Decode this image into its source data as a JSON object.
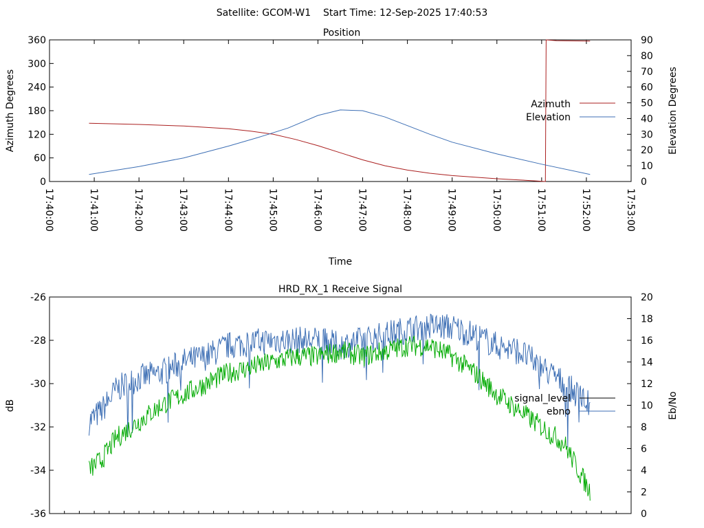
{
  "header": {
    "title": "Satellite: GCOM-W1    Start Time: 12-Sep-2025 17:40:53"
  },
  "chart_data": [
    {
      "type": "line",
      "title": "Position",
      "xlabel": "Time",
      "ylabel": "Azimuth Degrees",
      "y2label": "Elevation Degrees",
      "xlim": [
        "17:40:00",
        "17:53:00"
      ],
      "ylim": [
        0,
        360
      ],
      "y2lim": [
        0,
        90
      ],
      "x_ticks": [
        "17:40:00",
        "17:41:00",
        "17:42:00",
        "17:43:00",
        "17:44:00",
        "17:45:00",
        "17:46:00",
        "17:47:00",
        "17:48:00",
        "17:49:00",
        "17:50:00",
        "17:51:00",
        "17:52:00",
        "17:53:00"
      ],
      "y_ticks": [
        "0",
        "60",
        "120",
        "180",
        "240",
        "300",
        "360"
      ],
      "y2_ticks": [
        "0",
        "10",
        "20",
        "30",
        "40",
        "50",
        "60",
        "70",
        "80",
        "90"
      ],
      "legend_position": "right",
      "series": [
        {
          "name": "Azimuth",
          "axis": "left",
          "color": "#aa1e1e",
          "x": [
            "17:40:53",
            "17:42:00",
            "17:43:00",
            "17:44:00",
            "17:44:30",
            "17:45:00",
            "17:45:30",
            "17:46:00",
            "17:46:30",
            "17:47:00",
            "17:47:30",
            "17:48:00",
            "17:48:30",
            "17:49:00",
            "17:50:00",
            "17:50:30",
            "17:51:05",
            "17:51:06",
            "17:51:20",
            "17:52:05"
          ],
          "y": [
            148,
            145,
            141,
            134,
            128,
            120,
            107,
            91,
            73,
            55,
            40,
            29,
            21,
            15,
            7,
            4,
            0,
            360,
            358,
            357
          ]
        },
        {
          "name": "Elevation",
          "axis": "right",
          "color": "#3c6eb4",
          "x": [
            "17:40:53",
            "17:42:00",
            "17:43:00",
            "17:44:00",
            "17:44:40",
            "17:45:20",
            "17:46:00",
            "17:46:30",
            "17:47:00",
            "17:47:30",
            "17:48:00",
            "17:48:30",
            "17:49:00",
            "17:50:00",
            "17:51:00",
            "17:52:05"
          ],
          "y": [
            4.5,
            9.5,
            15,
            22.5,
            28,
            34,
            42,
            45.5,
            45,
            41,
            35.5,
            30,
            25,
            17.5,
            11,
            4.5
          ]
        }
      ]
    },
    {
      "type": "line",
      "title": "HRD_RX_1 Receive Signal",
      "xlabel": "",
      "ylabel": "dB",
      "y2label": "Eb/No",
      "ylim": [
        -36,
        -26
      ],
      "y2lim": [
        0,
        20
      ],
      "y_ticks": [
        "-26",
        "-28",
        "-30",
        "-32",
        "-34",
        "-36"
      ],
      "y2_ticks": [
        "0",
        "2",
        "4",
        "6",
        "8",
        "10",
        "12",
        "14",
        "16",
        "18",
        "20"
      ],
      "legend_position": "right",
      "series": [
        {
          "name": "signal_level",
          "axis": "left",
          "color": "#000000",
          "x": [],
          "y": []
        },
        {
          "name": "ebno",
          "axis": "right",
          "color": "#3c6eb4",
          "x": [
            "17:40:53",
            "17:41:10",
            "17:41:30",
            "17:42:00",
            "17:42:30",
            "17:43:00",
            "17:43:30",
            "17:44:00",
            "17:44:30",
            "17:45:00",
            "17:45:30",
            "17:46:00",
            "17:46:30",
            "17:47:00",
            "17:47:30",
            "17:48:00",
            "17:48:30",
            "17:49:00",
            "17:49:30",
            "17:50:00",
            "17:50:30",
            "17:51:00",
            "17:51:30",
            "17:52:05"
          ],
          "y": [
            8.5,
            9.5,
            11.5,
            12.5,
            13,
            14,
            14.5,
            15.5,
            15.8,
            16,
            16,
            16,
            15.5,
            16,
            16.5,
            17,
            17.3,
            17.2,
            16.5,
            15.5,
            15,
            13.5,
            12,
            10
          ]
        },
        {
          "name": "",
          "axis": "right",
          "color": "#00aa00",
          "x": [
            "17:40:53",
            "17:41:10",
            "17:41:30",
            "17:42:00",
            "17:42:30",
            "17:43:00",
            "17:43:30",
            "17:44:00",
            "17:44:30",
            "17:45:00",
            "17:45:30",
            "17:46:00",
            "17:46:30",
            "17:47:00",
            "17:47:30",
            "17:48:00",
            "17:48:30",
            "17:49:00",
            "17:49:30",
            "17:50:00",
            "17:50:30",
            "17:51:00",
            "17:51:30",
            "17:52:05"
          ],
          "y": [
            4,
            5,
            7,
            8.5,
            10,
            11,
            12,
            13,
            13.5,
            14,
            14.5,
            14.5,
            15,
            14.5,
            15,
            15.5,
            15.5,
            14.5,
            13,
            11,
            9.5,
            8,
            6.5,
            2
          ]
        }
      ]
    }
  ]
}
